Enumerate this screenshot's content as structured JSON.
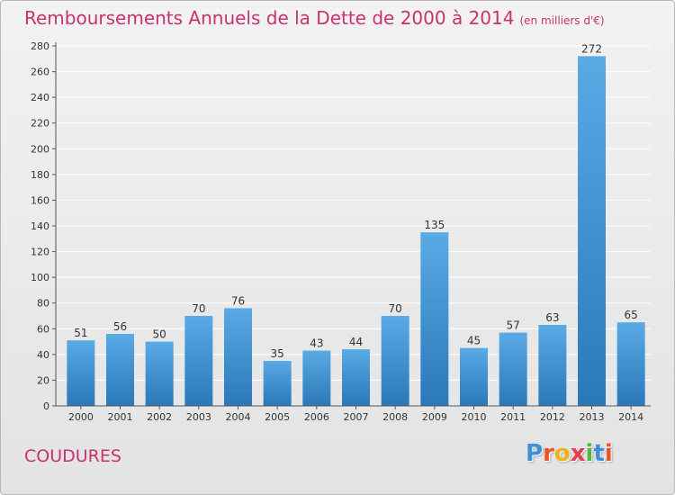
{
  "header": {
    "title": "Remboursements Annuels de la Dette de 2000 à 2014",
    "subtitle": "(en milliers d'€)"
  },
  "footer": {
    "town": "COUDURES",
    "logo_letters": [
      {
        "char": "P",
        "color": "#3f8fd6"
      },
      {
        "char": "r",
        "color": "#e8552a"
      },
      {
        "char": "o",
        "color": "#f0b21c"
      },
      {
        "char": "x",
        "color": "#e83c4f"
      },
      {
        "char": "i",
        "color": "#4fb648"
      },
      {
        "char": "t",
        "color": "#3f8fd6"
      },
      {
        "char": "i",
        "color": "#e8552a"
      }
    ]
  },
  "colors": {
    "accent": "#c8326e",
    "bar_top": "#5aaae6",
    "bar_bottom": "#2a78b8",
    "grid": "#ffffff",
    "axis": "#555555"
  },
  "chart_data": {
    "type": "bar",
    "categories": [
      "2000",
      "2001",
      "2002",
      "2003",
      "2004",
      "2005",
      "2006",
      "2007",
      "2008",
      "2009",
      "2010",
      "2011",
      "2012",
      "2013",
      "2014"
    ],
    "values": [
      51,
      56,
      50,
      70,
      76,
      35,
      43,
      44,
      70,
      135,
      45,
      57,
      63,
      272,
      65
    ],
    "ylim": [
      0,
      280
    ],
    "yticks": [
      0,
      20,
      40,
      60,
      80,
      100,
      120,
      140,
      160,
      180,
      200,
      220,
      240,
      260,
      280
    ],
    "grid": true,
    "legend": "none"
  }
}
